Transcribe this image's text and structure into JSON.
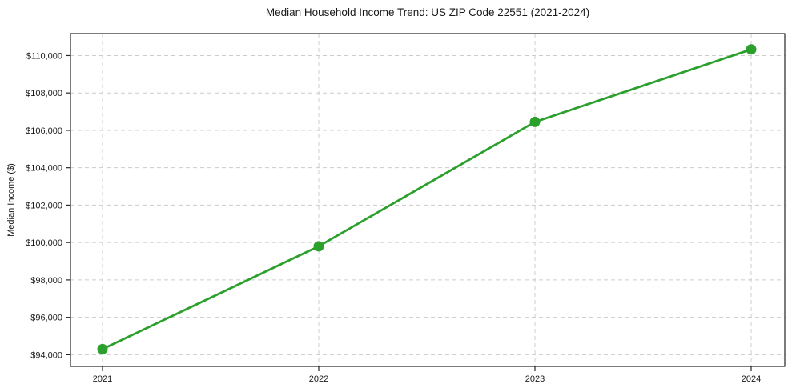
{
  "chart_data": {
    "type": "line",
    "title": "Median Household Income Trend: US ZIP Code 22551 (2021-2024)",
    "xlabel": "",
    "ylabel": "Median Income ($)",
    "categories": [
      "2021",
      "2022",
      "2023",
      "2024"
    ],
    "series": [
      {
        "values": [
          94300,
          99800,
          106450,
          110330
        ],
        "color": "#2ca02c",
        "marker": "circle"
      }
    ],
    "yticks": [
      94000,
      96000,
      98000,
      100000,
      102000,
      104000,
      106000,
      108000,
      110000
    ],
    "ytick_labels": [
      "$94,000",
      "$96,000",
      "$98,000",
      "$100,000",
      "$102,000",
      "$104,000",
      "$106,000",
      "$108,000",
      "$110,000"
    ],
    "ylim": [
      93375,
      111175
    ],
    "grid": true,
    "grid_style": "dashed",
    "legend_position": "none"
  },
  "style": {
    "line_color": "#2ca02c",
    "marker_color": "#2ca02c",
    "grid_color": "#cccccc",
    "axis_color": "#262626",
    "text_color": "#1a1a1a",
    "background_color": "#ffffff"
  }
}
